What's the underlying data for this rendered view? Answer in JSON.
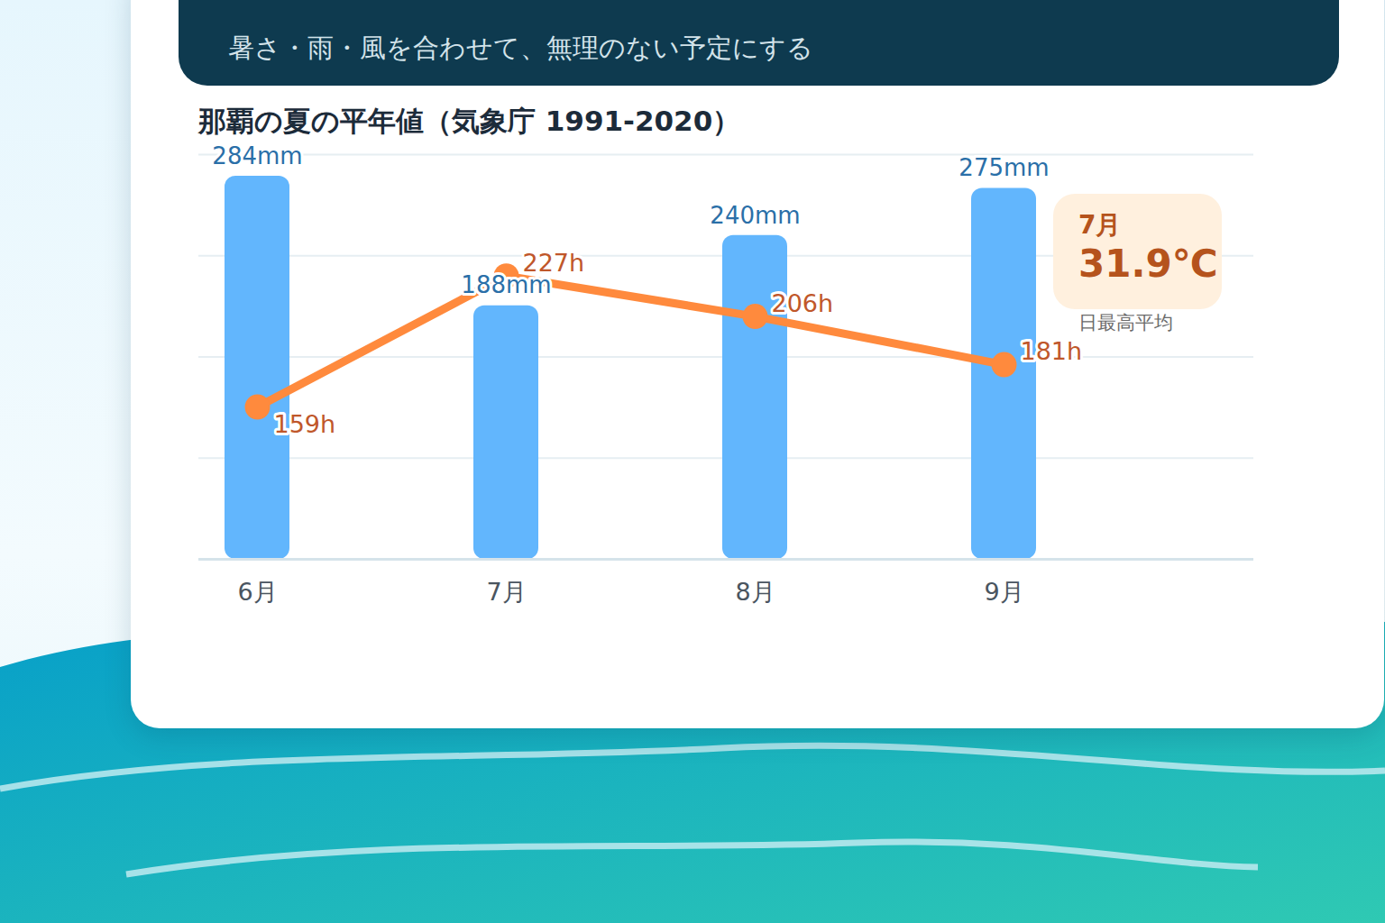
{
  "header": {
    "subtitle": "暑さ・雨・風を合わせて、無理のない予定にする"
  },
  "chart_data": {
    "type": "bar",
    "title": "那覇の夏の平年値（気象庁 1991-2020）",
    "categories": [
      "6月",
      "7月",
      "8月",
      "9月"
    ],
    "series": [
      {
        "type": "bar",
        "color": "#62b6fd",
        "values": [
          284,
          188,
          240,
          275
        ],
        "value_labels": [
          "284mm",
          "188mm",
          "240mm",
          "275mm"
        ],
        "data_labels": true
      },
      {
        "type": "line",
        "axis": "y2",
        "color": "#ff8a3d",
        "marker": "circle",
        "values": [
          159,
          227,
          206,
          181
        ],
        "value_labels": [
          "159h",
          "227h",
          "206h",
          "181h"
        ],
        "data_labels": true
      }
    ],
    "ylim": [
      0,
      300
    ],
    "yticks": [
      0,
      75,
      150,
      225,
      300
    ],
    "y2lim": [
      80,
      290
    ],
    "grid": true,
    "tick_labels": "x",
    "annotation": {
      "title": "7月",
      "text": "31.9℃",
      "caption": "日最高平均"
    }
  }
}
